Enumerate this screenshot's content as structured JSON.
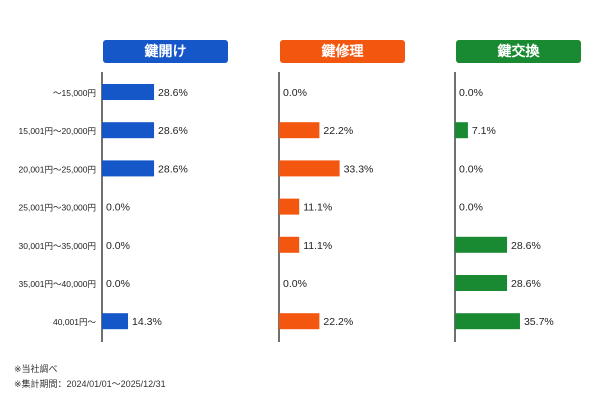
{
  "chart_data": {
    "type": "bar",
    "orientation": "horizontal",
    "categories": [
      "〜15,000円",
      "15,001円〜20,000円",
      "20,001円〜25,000円",
      "25,001円〜30,000円",
      "30,001円〜35,000円",
      "35,001円〜40,000円",
      "40,001円〜"
    ],
    "series": [
      {
        "name": "鍵開け",
        "color": "#1557c9",
        "values": [
          28.6,
          28.6,
          28.6,
          0.0,
          0.0,
          0.0,
          14.3
        ],
        "labels": [
          "28.6%",
          "28.6%",
          "28.6%",
          "0.0%",
          "0.0%",
          "0.0%",
          "14.3%"
        ]
      },
      {
        "name": "鍵修理",
        "color": "#f3560f",
        "values": [
          0.0,
          22.2,
          33.3,
          11.1,
          11.1,
          0.0,
          22.2
        ],
        "labels": [
          "0.0%",
          "22.2%",
          "33.3%",
          "11.1%",
          "11.1%",
          "0.0%",
          "22.2%"
        ]
      },
      {
        "name": "鍵交換",
        "color": "#1a8a32",
        "values": [
          0.0,
          7.1,
          0.0,
          0.0,
          28.6,
          28.6,
          35.7
        ],
        "labels": [
          "0.0%",
          "7.1%",
          "0.0%",
          "0.0%",
          "28.6%",
          "28.6%",
          "35.7%"
        ]
      }
    ],
    "unit": "%",
    "grid": false,
    "legend": "panel headers"
  },
  "notes": {
    "source": "※当社調べ",
    "period": "※集計期間：2024/01/01〜2025/12/31"
  }
}
